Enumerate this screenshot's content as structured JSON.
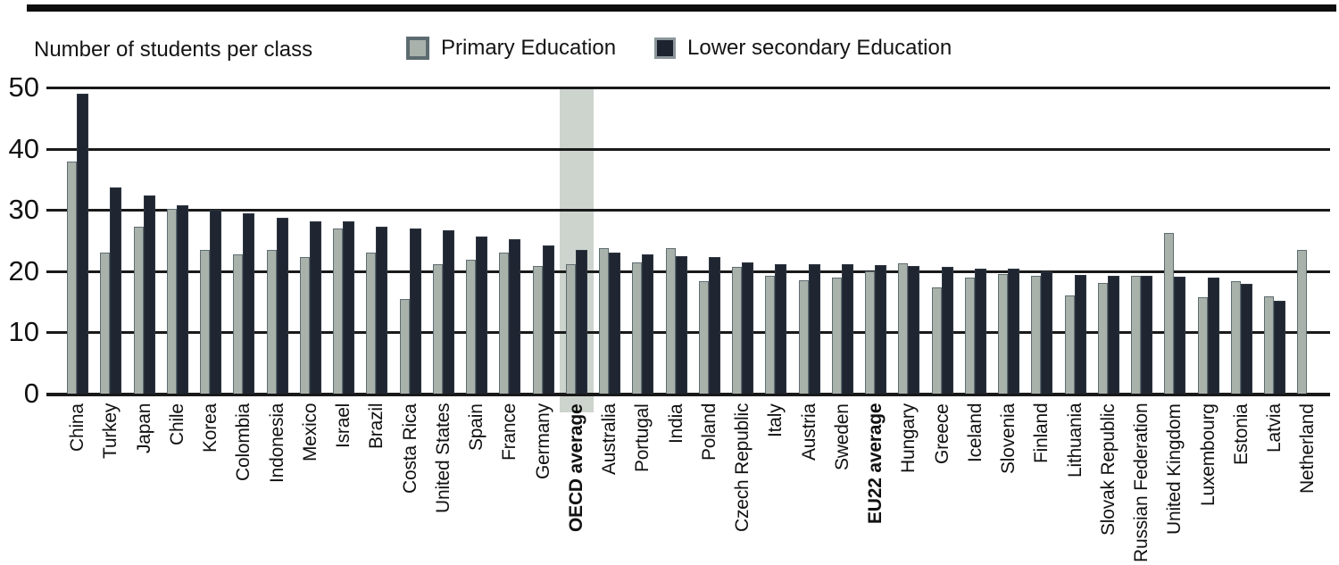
{
  "legend": {
    "axis_title": "Number of students per class",
    "series": [
      {
        "name": "Primary Education",
        "color": "#a9b1ab"
      },
      {
        "name": "Lower secondary Education",
        "color": "#1f2631"
      }
    ]
  },
  "colors": {
    "primary_bar": "#a9b1ab",
    "secondary_bar": "#1f2631",
    "highlight_band": "#cdd4ce",
    "gridline": "#191919",
    "top_rule": "#0d0d0d",
    "text": "#141414"
  },
  "chart_data": {
    "type": "bar",
    "title": "Number of students per class",
    "xlabel": "",
    "ylabel": "Number of students per class",
    "ylim": [
      0,
      50
    ],
    "yticks": [
      0,
      10,
      20,
      30,
      40,
      50
    ],
    "grid": true,
    "legend_position": "top",
    "highlight_category": "OECD average",
    "bold_categories": [
      "OECD average",
      "EU22 average"
    ],
    "categories": [
      "China",
      "Turkey",
      "Japan",
      "Chile",
      "Korea",
      "Colombia",
      "Indonesia",
      "Mexico",
      "Israel",
      "Brazil",
      "Costa Rica",
      "United States",
      "Spain",
      "France",
      "Germany",
      "OECD average",
      "Australia",
      "Portugal",
      "India",
      "Poland",
      "Czech Republic",
      "Italy",
      "Austria",
      "Sweden",
      "EU22 average",
      "Hungary",
      "Greece",
      "Iceland",
      "Slovenia",
      "Finland",
      "Lithuania",
      "Slovak Republic",
      "Russian Federation",
      "United Kingdom",
      "Luxembourg",
      "Estonia",
      "Latvia",
      "Netherland"
    ],
    "series": [
      {
        "name": "Primary Education",
        "values": [
          37.9,
          23,
          27.3,
          30.2,
          23.4,
          22.7,
          23.4,
          22.3,
          26.9,
          23,
          15.5,
          21.2,
          21.8,
          23,
          20.9,
          21.1,
          23.7,
          21.4,
          23.8,
          18.4,
          20.7,
          19.2,
          18.5,
          18.9,
          20,
          21.3,
          17.4,
          18.9,
          19.6,
          19.2,
          16.1,
          18.1,
          19.2,
          26.2,
          15.8,
          18.4,
          15.9,
          23.4
        ]
      },
      {
        "name": "Lower secondary Education",
        "values": [
          49,
          33.7,
          32.3,
          30.8,
          30,
          29.4,
          28.7,
          28.1,
          28.1,
          27.2,
          26.9,
          26.7,
          25.7,
          25.2,
          24.2,
          23.5,
          23.1,
          22.7,
          22.5,
          22.3,
          21.4,
          21.2,
          21.1,
          21.1,
          21,
          20.8,
          20.7,
          20.4,
          20.4,
          19.9,
          19.4,
          19.3,
          19.2,
          19.1,
          18.9,
          17.9,
          15.1,
          null
        ]
      }
    ]
  }
}
